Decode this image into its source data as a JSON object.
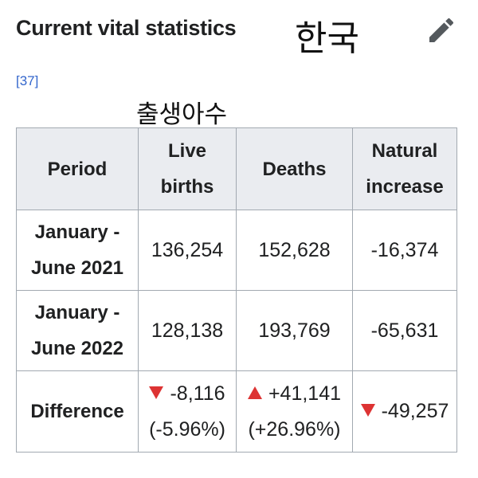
{
  "header": {
    "title": "Current vital statistics",
    "annotation": "한국",
    "edit_icon": "pencil-icon"
  },
  "reference": "[37]",
  "column_annotation": "출생아수",
  "table": {
    "headers": {
      "period": "Period",
      "live_births_line1": "Live",
      "live_births_line2": "births",
      "deaths": "Deaths",
      "natural_increase_line1": "Natural",
      "natural_increase_line2": "increase"
    },
    "rows": [
      {
        "period_line1": "January -",
        "period_line2": "June 2021",
        "live_births": "136,254",
        "deaths": "152,628",
        "natural_increase": "-16,374"
      },
      {
        "period_line1": "January -",
        "period_line2": "June 2022",
        "live_births": "128,138",
        "deaths": "193,769",
        "natural_increase": "-65,631"
      }
    ],
    "difference": {
      "label": "Difference",
      "live_births": "-8,116",
      "live_births_pct": "(-5.96%)",
      "deaths": "+41,141",
      "deaths_pct": "(+26.96%)",
      "natural_increase": "-49,257"
    }
  },
  "colors": {
    "header_bg": "#eaecf0",
    "border": "#a2a9b1",
    "link": "#3366cc",
    "indicator_red": "#dd3333",
    "text": "#202122"
  }
}
